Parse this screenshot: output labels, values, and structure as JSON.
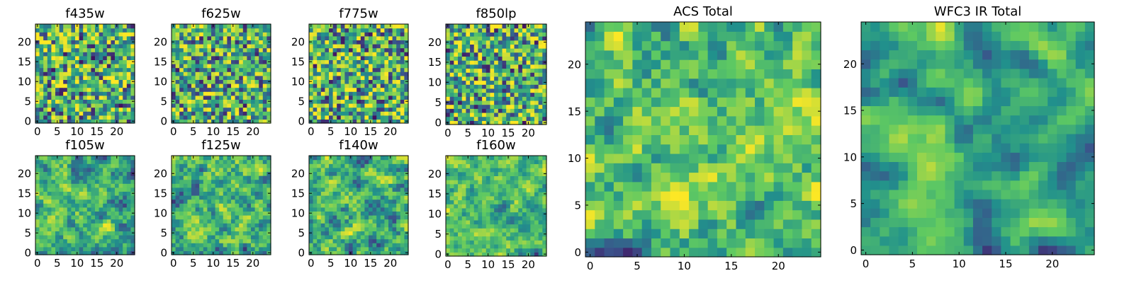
{
  "figure": {
    "colormap": [
      "#440154",
      "#3b528b",
      "#21918c",
      "#5ec962",
      "#fde725"
    ]
  },
  "chart_data": [
    {
      "type": "heatmap",
      "title": "f435w",
      "grid_size": 25,
      "seed": 11,
      "smooth": 0,
      "bias": 0.0,
      "xlim": [
        0,
        25
      ],
      "ylim": [
        0,
        25
      ],
      "xticks": [
        0,
        5,
        10,
        15,
        20
      ],
      "yticks": [
        0,
        5,
        10,
        15,
        20
      ]
    },
    {
      "type": "heatmap",
      "title": "f625w",
      "grid_size": 25,
      "seed": 23,
      "smooth": 0,
      "bias": 0.05,
      "xlim": [
        0,
        25
      ],
      "ylim": [
        0,
        25
      ],
      "xticks": [
        0,
        5,
        10,
        15,
        20
      ],
      "yticks": [
        0,
        5,
        10,
        15,
        20
      ]
    },
    {
      "type": "heatmap",
      "title": "f775w",
      "grid_size": 25,
      "seed": 37,
      "smooth": 0,
      "bias": 0.0,
      "xlim": [
        0,
        25
      ],
      "ylim": [
        0,
        25
      ],
      "xticks": [
        0,
        5,
        10,
        15,
        20
      ],
      "yticks": [
        0,
        5,
        10,
        15,
        20
      ]
    },
    {
      "type": "heatmap",
      "title": "f850lp",
      "grid_size": 25,
      "seed": 41,
      "smooth": 0,
      "bias": 0.0,
      "xlim": [
        0,
        25
      ],
      "ylim": [
        0,
        25
      ],
      "xticks": [
        0,
        5,
        10,
        15,
        20
      ],
      "yticks": [
        0,
        5,
        10,
        15,
        20
      ]
    },
    {
      "type": "heatmap",
      "title": "f105w",
      "grid_size": 25,
      "seed": 53,
      "smooth": 1,
      "bias": 0.15,
      "xlim": [
        0,
        25
      ],
      "ylim": [
        0,
        25
      ],
      "xticks": [
        0,
        5,
        10,
        15,
        20
      ],
      "yticks": [
        0,
        5,
        10,
        15,
        20
      ]
    },
    {
      "type": "heatmap",
      "title": "f125w",
      "grid_size": 25,
      "seed": 67,
      "smooth": 1,
      "bias": 0.18,
      "xlim": [
        0,
        25
      ],
      "ylim": [
        0,
        25
      ],
      "xticks": [
        0,
        5,
        10,
        15,
        20
      ],
      "yticks": [
        0,
        5,
        10,
        15,
        20
      ]
    },
    {
      "type": "heatmap",
      "title": "f140w",
      "grid_size": 25,
      "seed": 71,
      "smooth": 1,
      "bias": 0.15,
      "xlim": [
        0,
        25
      ],
      "ylim": [
        0,
        25
      ],
      "xticks": [
        0,
        5,
        10,
        15,
        20
      ],
      "yticks": [
        0,
        5,
        10,
        15,
        20
      ]
    },
    {
      "type": "heatmap",
      "title": "f160w",
      "grid_size": 25,
      "seed": 83,
      "smooth": 1,
      "bias": 0.18,
      "xlim": [
        0,
        25
      ],
      "ylim": [
        0,
        25
      ],
      "xticks": [
        0,
        5,
        10,
        15,
        20
      ],
      "yticks": [
        0,
        5,
        10,
        15,
        20
      ]
    },
    {
      "type": "heatmap",
      "title": "ACS Total",
      "grid_size": 25,
      "seed": 97,
      "smooth": 1,
      "bias": 0.12,
      "xlim": [
        0,
        25
      ],
      "ylim": [
        0,
        25
      ],
      "xticks": [
        0,
        5,
        10,
        15,
        20
      ],
      "yticks": [
        0,
        5,
        10,
        15,
        20
      ]
    },
    {
      "type": "heatmap",
      "title": "WFC3 IR Total",
      "grid_size": 25,
      "seed": 101,
      "smooth": 2,
      "bias": 0.2,
      "xlim": [
        0,
        25
      ],
      "ylim": [
        0,
        25
      ],
      "xticks": [
        0,
        5,
        10,
        15,
        20
      ],
      "yticks": [
        0,
        5,
        10,
        15,
        20
      ]
    }
  ]
}
